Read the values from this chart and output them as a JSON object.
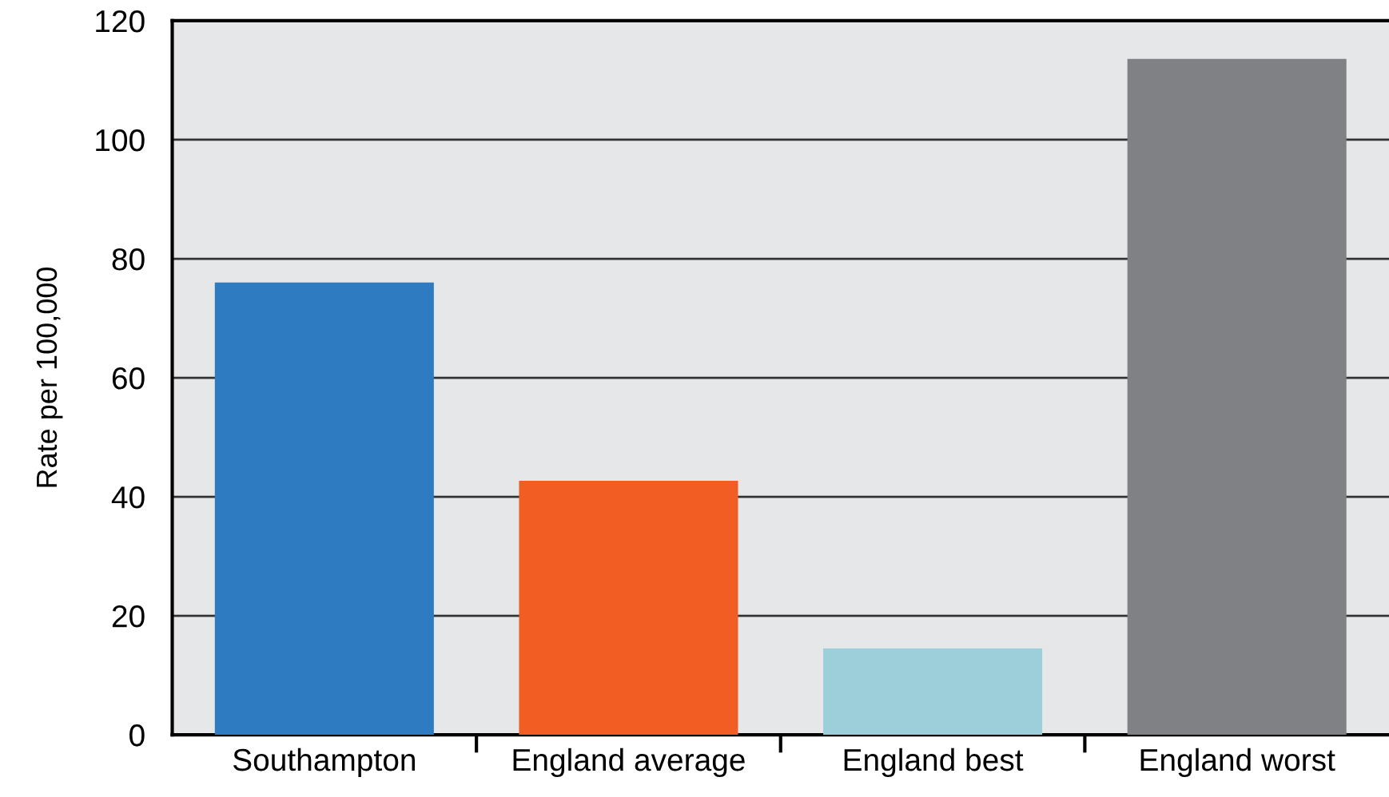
{
  "chart_data": {
    "type": "bar",
    "ylabel": "Rate per 100,000",
    "categories": [
      "Southampton",
      "England average",
      "England best",
      "England worst"
    ],
    "values": [
      76,
      42.7,
      14.5,
      113.6
    ],
    "colors": [
      "#2f7bc1",
      "#f15d22",
      "#9ccfd9",
      "#808184"
    ],
    "ylim": [
      0,
      120
    ],
    "yticks": [
      0,
      20,
      40,
      60,
      80,
      100,
      120
    ],
    "grid": "y",
    "legend": false
  }
}
